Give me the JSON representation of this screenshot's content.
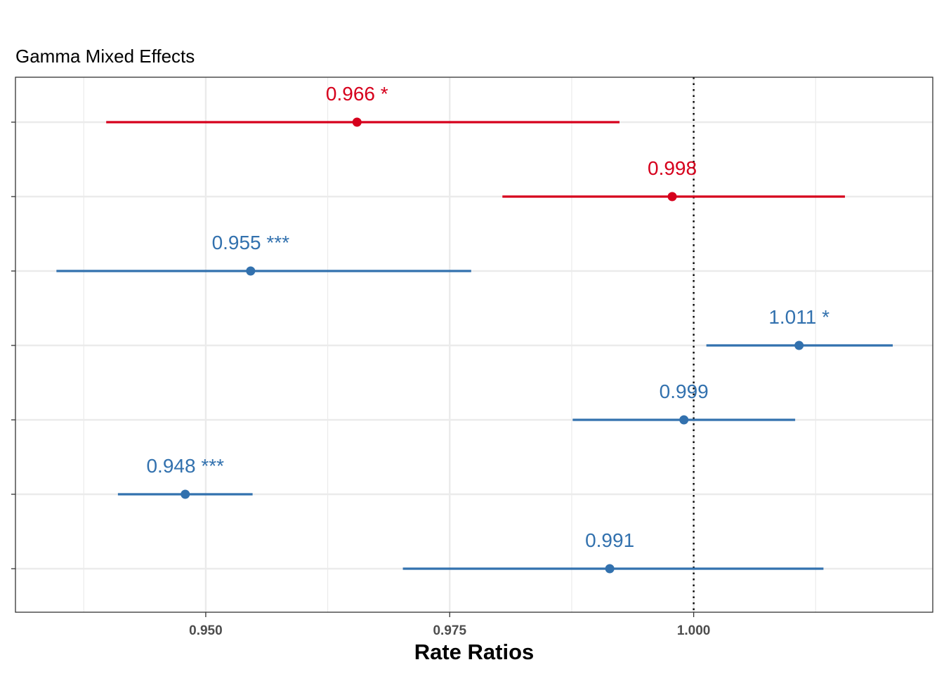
{
  "chart_data": {
    "type": "forest",
    "title": "Gamma Mixed Effects",
    "xlabel": "Rate Ratios",
    "xlim": [
      0.9305,
      1.0245
    ],
    "x_ticks": [
      0.95,
      0.975,
      1.0
    ],
    "x_tick_labels": [
      "0.950",
      "0.975",
      "1.000"
    ],
    "x_minor_gridlines": [
      0.9375,
      0.9625,
      0.9875,
      1.0125
    ],
    "reference_line": 1.0,
    "colors": {
      "positive": "#d6001c",
      "negative": "#3271ae",
      "reference": "#000000",
      "grid": "#ebebeb"
    },
    "grid": true,
    "points": [
      {
        "estimate": 0.9655,
        "ci_low": 0.9398,
        "ci_high": 0.9924,
        "label": "0.966 *",
        "color": "#d6001c"
      },
      {
        "estimate": 0.9978,
        "ci_low": 0.9804,
        "ci_high": 1.0155,
        "label": "0.998",
        "color": "#d6001c"
      },
      {
        "estimate": 0.9546,
        "ci_low": 0.9347,
        "ci_high": 0.9772,
        "label": "0.955 ***",
        "color": "#3271ae"
      },
      {
        "estimate": 1.0108,
        "ci_low": 1.0013,
        "ci_high": 1.0204,
        "label": "1.011 *",
        "color": "#3271ae"
      },
      {
        "estimate": 0.999,
        "ci_low": 0.9876,
        "ci_high": 1.0104,
        "label": "0.999",
        "color": "#3271ae"
      },
      {
        "estimate": 0.9479,
        "ci_low": 0.941,
        "ci_high": 0.9548,
        "label": "0.948 ***",
        "color": "#3271ae"
      },
      {
        "estimate": 0.9914,
        "ci_low": 0.9702,
        "ci_high": 1.0133,
        "label": "0.991",
        "color": "#3271ae"
      }
    ]
  }
}
